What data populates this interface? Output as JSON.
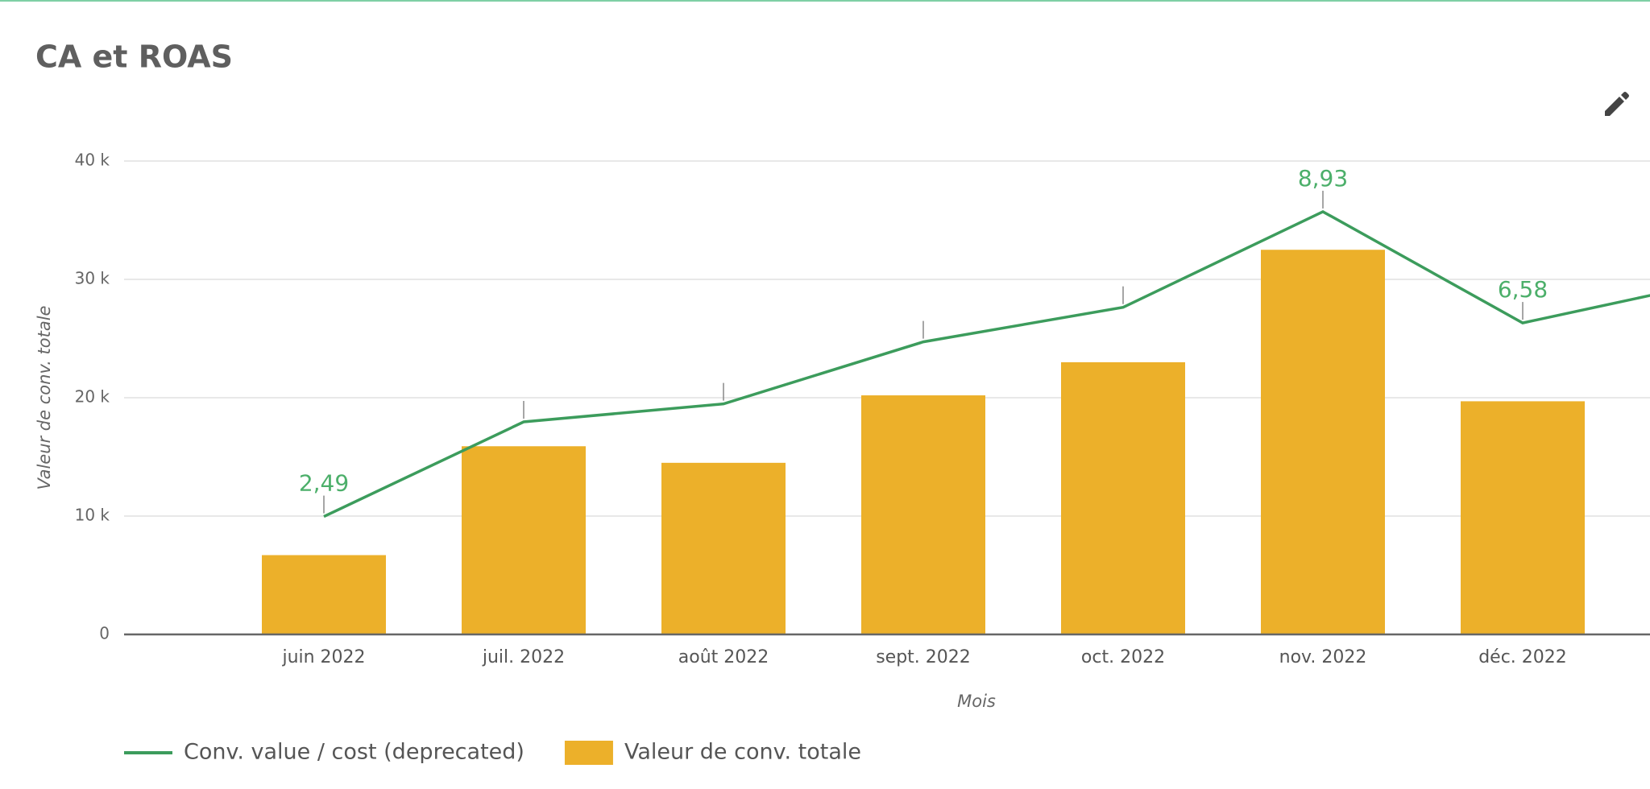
{
  "chart_data": {
    "type": "bar-line",
    "title": "CA et ROAS",
    "x_label": "Mois",
    "y_label": "Valeur de conv. totale",
    "categories": [
      "juin 2022",
      "juil. 2022",
      "août 2022",
      "sept. 2022",
      "oct. 2022",
      "nov. 2022",
      "déc. 2022",
      null
    ],
    "series": [
      {
        "name": "Conv. value / cost (deprecated)",
        "type": "line",
        "axis": "y2",
        "color": "#3c9c5c",
        "values": [
          2.49,
          4.49,
          4.87,
          6.18,
          6.91,
          8.93,
          6.58,
          7.49
        ],
        "value_labels": [
          "2,49",
          null,
          null,
          null,
          null,
          "8,93",
          "6,58",
          null
        ]
      },
      {
        "name": "Valeur de conv. totale",
        "type": "bar",
        "color": "#ecb02a",
        "values": [
          6700,
          15900,
          14500,
          20200,
          23000,
          32500,
          19700,
          null
        ]
      }
    ],
    "ylim": [
      0,
      40000
    ],
    "yticks": [
      0,
      {
        "value": 10000,
        "label": "10 k"
      },
      {
        "value": 20000,
        "label": "20 k"
      },
      {
        "value": 30000,
        "label": "30 k"
      },
      {
        "value": 40000,
        "label": "40 k"
      }
    ],
    "y2lim": [
      0,
      10
    ],
    "grid": true,
    "legend": "bottom-left"
  }
}
